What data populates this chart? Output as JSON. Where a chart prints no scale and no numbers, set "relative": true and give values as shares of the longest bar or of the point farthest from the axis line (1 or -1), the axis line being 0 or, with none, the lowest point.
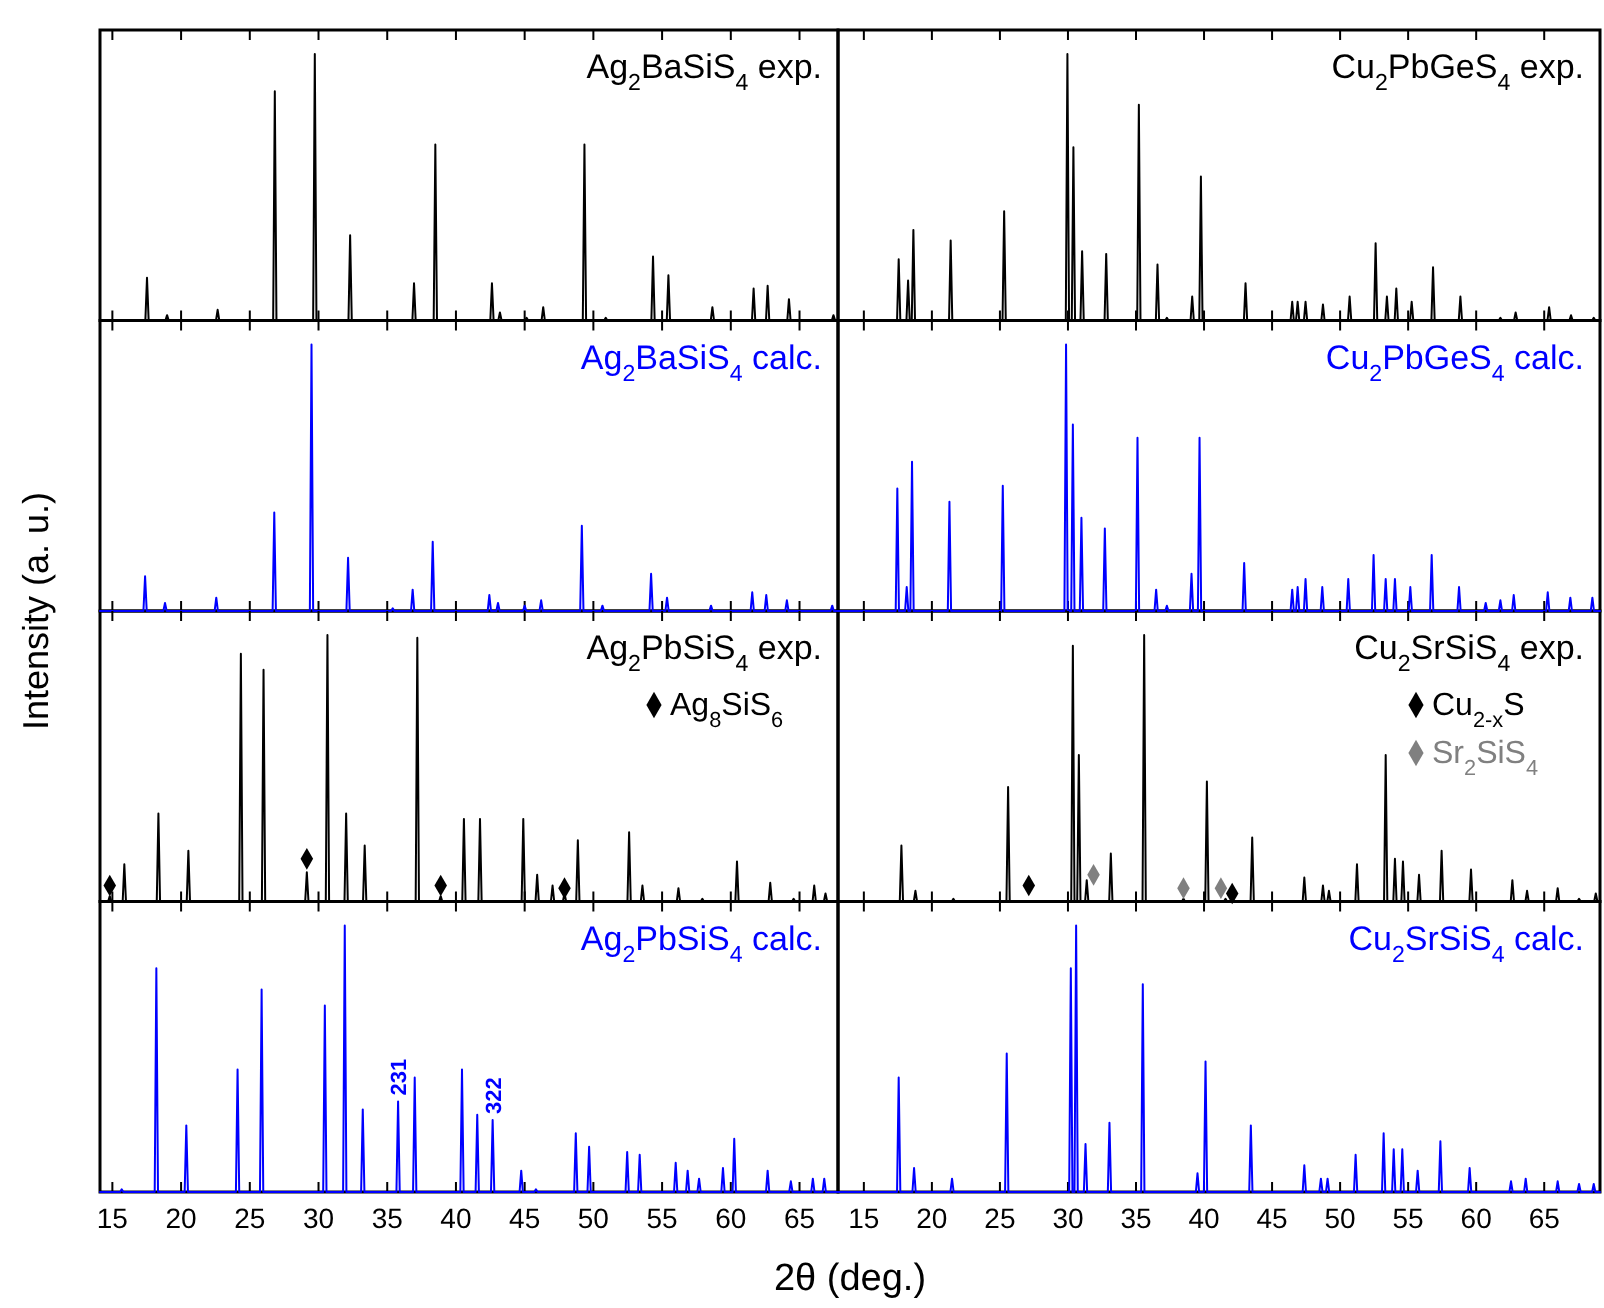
{
  "chart_data": [
    {
      "type": "line",
      "title": "Ag$_{2}$BaSiS$_{4}$ exp.",
      "relative": true,
      "xlim": [
        14.1,
        67.8
      ],
      "xticks": [
        15,
        20,
        25,
        30,
        35,
        40,
        45,
        50,
        55,
        60,
        65
      ],
      "tick_labels": false,
      "series": [
        {
          "color": "#000000",
          "x": [
            14.1,
            17.4,
            17.52,
            17.64,
            18.86,
            18.98,
            19.1,
            22.54,
            22.66,
            22.78,
            26.7,
            26.82,
            26.94,
            29.61,
            29.73,
            29.85,
            32.18,
            32.3,
            32.42,
            36.83,
            36.95,
            37.07,
            38.38,
            38.5,
            38.62,
            42.5,
            42.62,
            42.74,
            43.08,
            43.2,
            43.32,
            45.02,
            45.14,
            45.26,
            46.23,
            46.35,
            46.47,
            49.23,
            49.35,
            49.47,
            50.78,
            50.9,
            51.02,
            54.22,
            54.34,
            54.46,
            55.34,
            55.46,
            55.58,
            58.54,
            58.66,
            58.78,
            61.54,
            61.66,
            61.78,
            62.56,
            62.68,
            62.8,
            64.11,
            64.23,
            64.35,
            67.35,
            67.47,
            67.59,
            67.8
          ],
          "values": [
            0,
            0,
            0.16,
            0,
            0,
            0.02,
            0,
            0,
            0.04,
            0,
            0,
            0.86,
            0,
            0,
            1,
            0,
            0,
            0.32,
            0,
            0,
            0.14,
            0,
            0,
            0.66,
            0,
            0,
            0.14,
            0,
            0,
            0.03,
            0,
            0,
            0.01,
            0,
            0,
            0.05,
            0,
            0,
            0.66,
            0,
            0,
            0.01,
            0,
            0,
            0.24,
            0,
            0,
            0.17,
            0,
            0,
            0.05,
            0,
            0,
            0.12,
            0,
            0,
            0.13,
            0,
            0,
            0.08,
            0,
            0,
            0.02,
            0,
            0
          ]
        }
      ]
    },
    {
      "type": "line",
      "title": "Cu$_{2}$PbGeS$_{4}$ exp.",
      "relative": true,
      "xlim": [
        13.1,
        69.1
      ],
      "xticks": [
        15,
        20,
        25,
        30,
        35,
        40,
        45,
        50,
        55,
        60,
        65
      ],
      "tick_labels": false,
      "series": [
        {
          "color": "#000000",
          "x": [
            13.1,
            17.44,
            17.56,
            17.68,
            18.13,
            18.25,
            18.37,
            18.52,
            18.64,
            18.76,
            21.26,
            21.38,
            21.5,
            25.19,
            25.31,
            25.43,
            29.84,
            29.96,
            30.08,
            30.28,
            30.4,
            30.52,
            30.92,
            31.04,
            31.16,
            32.69,
            32.81,
            32.93,
            35.09,
            35.21,
            35.33,
            36.46,
            36.58,
            36.7,
            37.15,
            37.27,
            37.39,
            39.01,
            39.13,
            39.25,
            39.65,
            39.77,
            39.89,
            42.93,
            43.05,
            43.17,
            46.36,
            46.48,
            46.6,
            46.76,
            46.88,
            47,
            47.34,
            47.46,
            47.58,
            48.62,
            48.74,
            48.86,
            50.58,
            50.7,
            50.82,
            52.49,
            52.61,
            52.73,
            53.32,
            53.44,
            53.56,
            54.01,
            54.13,
            54.25,
            55.14,
            55.26,
            55.38,
            56.71,
            56.83,
            56.95,
            58.72,
            58.84,
            58.96,
            61.66,
            61.78,
            61.9,
            62.78,
            62.9,
            63.02,
            65.24,
            65.36,
            65.48,
            66.85,
            66.97,
            67.09,
            68.52,
            68.64,
            68.76,
            69.1
          ],
          "values": [
            0,
            0,
            0.23,
            0,
            0,
            0.15,
            0,
            0,
            0.34,
            0,
            0,
            0.3,
            0,
            0,
            0.41,
            0,
            0,
            1,
            0,
            0,
            0.65,
            0,
            0,
            0.26,
            0,
            0,
            0.25,
            0,
            0,
            0.81,
            0,
            0,
            0.21,
            0,
            0,
            0.01,
            0,
            0,
            0.09,
            0,
            0,
            0.54,
            0,
            0,
            0.14,
            0,
            0,
            0.07,
            0,
            0,
            0.07,
            0,
            0,
            0.07,
            0,
            0,
            0.06,
            0,
            0,
            0.09,
            0,
            0,
            0.29,
            0,
            0,
            0.09,
            0,
            0,
            0.12,
            0,
            0,
            0.07,
            0,
            0,
            0.2,
            0,
            0,
            0.09,
            0,
            0,
            0.01,
            0,
            0,
            0.03,
            0,
            0,
            0.05,
            0,
            0,
            0.02,
            0,
            0,
            0.01,
            0,
            0
          ]
        }
      ]
    },
    {
      "type": "line",
      "title": "Ag$_{2}$BaSiS$_{4}$ calc.",
      "relative": true,
      "xlim": [
        14.1,
        67.8
      ],
      "xticks": [
        15,
        20,
        25,
        30,
        35,
        40,
        45,
        50,
        55,
        60,
        65
      ],
      "tick_labels": false,
      "series": [
        {
          "color": "#0000ff",
          "x": [
            14.1,
            17.26,
            17.38,
            17.5,
            18.71,
            18.83,
            18.95,
            22.44,
            22.56,
            22.68,
            26.66,
            26.78,
            26.9,
            29.37,
            29.49,
            29.61,
            32.03,
            32.15,
            32.27,
            35.28,
            35.4,
            35.52,
            36.73,
            36.85,
            36.97,
            38.19,
            38.31,
            38.43,
            42.31,
            42.43,
            42.55,
            42.94,
            43.06,
            43.18,
            44.88,
            45,
            45.12,
            46.08,
            46.2,
            46.32,
            49.04,
            49.16,
            49.28,
            50.54,
            50.66,
            50.78,
            54.08,
            54.2,
            54.32,
            55.24,
            55.36,
            55.48,
            58.44,
            58.56,
            58.68,
            61.44,
            61.56,
            61.68,
            62.46,
            62.58,
            62.7,
            63.96,
            64.08,
            64.2,
            67.26,
            67.38,
            67.5,
            67.8
          ],
          "values": [
            0,
            0,
            0.13,
            0,
            0,
            0.03,
            0,
            0,
            0.05,
            0,
            0,
            0.37,
            0,
            0,
            1,
            0,
            0,
            0.2,
            0,
            0,
            0.01,
            0,
            0,
            0.08,
            0,
            0,
            0.26,
            0,
            0,
            0.06,
            0,
            0,
            0.03,
            0,
            0,
            0.02,
            0,
            0,
            0.04,
            0,
            0,
            0.32,
            0,
            0,
            0.02,
            0,
            0,
            0.14,
            0,
            0,
            0.05,
            0,
            0,
            0.02,
            0,
            0,
            0.07,
            0,
            0,
            0.06,
            0,
            0,
            0.04,
            0,
            0,
            0.02,
            0,
            0
          ]
        }
      ]
    },
    {
      "type": "line",
      "title": "Cu$_{2}$PbGeS$_{4}$ calc.",
      "relative": true,
      "xlim": [
        13.1,
        69.1
      ],
      "xticks": [
        15,
        20,
        25,
        30,
        35,
        40,
        45,
        50,
        55,
        60,
        65
      ],
      "tick_labels": false,
      "series": [
        {
          "color": "#0000ff",
          "x": [
            13.1,
            17.34,
            17.46,
            17.58,
            18.03,
            18.15,
            18.27,
            18.42,
            18.54,
            18.66,
            21.17,
            21.29,
            21.41,
            25.09,
            25.21,
            25.33,
            29.74,
            29.86,
            29.98,
            30.24,
            30.36,
            30.48,
            30.87,
            30.99,
            31.11,
            32.59,
            32.71,
            32.83,
            34.99,
            35.11,
            35.23,
            36.36,
            36.48,
            36.6,
            37.15,
            37.27,
            37.39,
            38.96,
            39.08,
            39.2,
            39.55,
            39.67,
            39.79,
            42.83,
            42.95,
            43.07,
            46.36,
            46.48,
            46.6,
            46.76,
            46.88,
            47,
            47.34,
            47.46,
            47.58,
            48.57,
            48.69,
            48.81,
            50.48,
            50.6,
            50.72,
            52.34,
            52.46,
            52.58,
            53.23,
            53.35,
            53.47,
            53.91,
            54.03,
            54.15,
            55.04,
            55.16,
            55.28,
            56.61,
            56.73,
            56.85,
            58.62,
            58.74,
            58.86,
            60.58,
            60.7,
            60.82,
            61.66,
            61.78,
            61.9,
            62.64,
            62.76,
            62.88,
            65.14,
            65.26,
            65.38,
            66.8,
            66.92,
            67.04,
            68.42,
            68.54,
            68.66,
            69.1
          ],
          "values": [
            0,
            0,
            0.46,
            0,
            0,
            0.09,
            0,
            0,
            0.56,
            0,
            0,
            0.41,
            0,
            0,
            0.47,
            0,
            0,
            1,
            0,
            0,
            0.7,
            0,
            0,
            0.35,
            0,
            0,
            0.31,
            0,
            0,
            0.65,
            0,
            0,
            0.08,
            0,
            0,
            0.02,
            0,
            0,
            0.14,
            0,
            0,
            0.65,
            0,
            0,
            0.18,
            0,
            0,
            0.08,
            0,
            0,
            0.09,
            0,
            0,
            0.12,
            0,
            0,
            0.09,
            0,
            0,
            0.12,
            0,
            0,
            0.21,
            0,
            0,
            0.12,
            0,
            0,
            0.12,
            0,
            0,
            0.09,
            0,
            0,
            0.21,
            0,
            0,
            0.09,
            0,
            0,
            0.03,
            0,
            0,
            0.04,
            0,
            0,
            0.06,
            0,
            0,
            0.07,
            0,
            0,
            0.05,
            0,
            0,
            0.05,
            0,
            0
          ]
        }
      ]
    },
    {
      "type": "line",
      "title": "Ag$_{2}$PbSiS$_{4}$ exp.",
      "ylabel": "Intensity (a. u.)",
      "relative": true,
      "legend": "top right",
      "xlim": [
        14.1,
        67.8
      ],
      "xticks": [
        15,
        20,
        25,
        30,
        35,
        40,
        45,
        50,
        55,
        60,
        65
      ],
      "tick_labels": false,
      "series": [
        {
          "color": "#000000",
          "x": [
            14.1,
            14.69,
            14.81,
            14.93,
            15.75,
            15.87,
            15.99,
            18.23,
            18.35,
            18.47,
            20.41,
            20.53,
            20.65,
            24.23,
            24.35,
            24.47,
            25.88,
            26,
            26.12,
            29.03,
            29.15,
            29.27,
            30.53,
            30.65,
            30.77,
            31.89,
            32.01,
            32.13,
            33.24,
            33.36,
            33.48,
            37.07,
            37.19,
            37.31,
            38.77,
            38.89,
            39.01,
            40.46,
            40.58,
            40.7,
            41.63,
            41.75,
            41.87,
            44.78,
            44.9,
            45.02,
            45.79,
            45.91,
            46.03,
            46.91,
            47.03,
            47.15,
            47.78,
            47.9,
            48.02,
            48.75,
            48.87,
            48.99,
            52.48,
            52.6,
            52.72,
            53.45,
            53.57,
            53.69,
            56.07,
            56.19,
            56.31,
            57.81,
            57.93,
            58.05,
            60.33,
            60.45,
            60.57,
            62.75,
            62.87,
            62.99,
            64.45,
            64.57,
            64.69,
            65.95,
            66.07,
            66.19,
            66.77,
            66.89,
            67.01,
            67.8
          ],
          "values": [
            0,
            0,
            0.02,
            0,
            0,
            0.14,
            0,
            0,
            0.33,
            0,
            0,
            0.19,
            0,
            0,
            0.93,
            0,
            0,
            0.87,
            0,
            0,
            0.11,
            0,
            0,
            1,
            0,
            0,
            0.33,
            0,
            0,
            0.21,
            0,
            0,
            0.99,
            0,
            0,
            0.02,
            0,
            0,
            0.31,
            0,
            0,
            0.31,
            0,
            0,
            0.31,
            0,
            0,
            0.1,
            0,
            0,
            0.06,
            0,
            0,
            0.03,
            0,
            0,
            0.23,
            0,
            0,
            0.26,
            0,
            0,
            0.06,
            0,
            0,
            0.05,
            0,
            0,
            0.01,
            0,
            0,
            0.15,
            0,
            0,
            0.07,
            0,
            0,
            0.01,
            0,
            0,
            0.06,
            0,
            0,
            0.03,
            0,
            0
          ]
        },
        {
          "type": "scatter",
          "name": "Ag$_{8}$SiS$_{6}$",
          "color": "#000000",
          "marker": "diamond",
          "x": [
            14.81,
            29.15,
            38.89,
            47.9
          ],
          "values": [
            0.06,
            0.16,
            0.06,
            0.05
          ]
        }
      ]
    },
    {
      "type": "line",
      "title": "Cu$_{2}$SrSiS$_{4}$ exp.",
      "relative": true,
      "legend": "top right",
      "xlim": [
        13.1,
        69.1
      ],
      "xticks": [
        15,
        20,
        25,
        30,
        35,
        40,
        45,
        50,
        55,
        60,
        65
      ],
      "tick_labels": false,
      "series": [
        {
          "color": "#000000",
          "x": [
            13.1,
            17.64,
            17.76,
            17.88,
            18.67,
            18.79,
            18.91,
            21.46,
            21.58,
            21.7,
            25.48,
            25.6,
            25.72,
            30.24,
            30.36,
            30.48,
            30.68,
            30.8,
            30.92,
            31.26,
            31.38,
            31.5,
            33.03,
            33.15,
            33.27,
            35.48,
            35.6,
            35.72,
            38.37,
            38.49,
            38.61,
            40.09,
            40.21,
            40.33,
            41.46,
            41.58,
            41.7,
            43.42,
            43.54,
            43.66,
            47.25,
            47.37,
            47.49,
            48.62,
            48.74,
            48.86,
            49.06,
            49.18,
            49.3,
            51.12,
            51.24,
            51.36,
            53.23,
            53.35,
            53.47,
            53.91,
            54.03,
            54.15,
            54.5,
            54.62,
            54.74,
            55.68,
            55.8,
            55.92,
            57.34,
            57.46,
            57.58,
            59.5,
            59.62,
            59.74,
            62.54,
            62.66,
            62.78,
            63.62,
            63.74,
            63.86,
            65.87,
            65.99,
            66.11,
            67.44,
            67.56,
            67.68,
            68.67,
            68.79,
            68.91,
            69.1
          ],
          "values": [
            0,
            0,
            0.21,
            0,
            0,
            0.04,
            0,
            0,
            0.01,
            0,
            0,
            0.43,
            0,
            0,
            0.96,
            0,
            0,
            0.55,
            0,
            0,
            0.08,
            0,
            0,
            0.18,
            0,
            0,
            1,
            0,
            0,
            0.01,
            0,
            0,
            0.45,
            0,
            0,
            0.01,
            0,
            0,
            0.24,
            0,
            0,
            0.09,
            0,
            0,
            0.06,
            0,
            0,
            0.04,
            0,
            0,
            0.14,
            0,
            0,
            0.55,
            0,
            0,
            0.16,
            0,
            0,
            0.15,
            0,
            0,
            0.1,
            0,
            0,
            0.19,
            0,
            0,
            0.12,
            0,
            0,
            0.08,
            0,
            0,
            0.04,
            0,
            0,
            0.05,
            0,
            0,
            0.01,
            0,
            0,
            0.03,
            0,
            0
          ]
        },
        {
          "type": "scatter",
          "name": "Cu$_{2-x}$S",
          "color": "#000000",
          "marker": "diamond",
          "x": [
            27.12,
            42.07
          ],
          "values": [
            0.06,
            0.03
          ]
        },
        {
          "type": "scatter",
          "name": "Sr$_{2}$SiS$_{4}$",
          "color": "#808080",
          "marker": "diamond",
          "x": [
            31.88,
            38.49,
            41.24
          ],
          "values": [
            0.1,
            0.05,
            0.05
          ]
        }
      ]
    },
    {
      "type": "line",
      "title": "Ag$_{2}$PbSiS$_{4}$ calc.",
      "xlabel": "2θ (deg.)",
      "relative": true,
      "xlim": [
        14.1,
        67.8
      ],
      "xticks": [
        15,
        20,
        25,
        30,
        35,
        40,
        45,
        50,
        55,
        60,
        65
      ],
      "tick_labels": "x",
      "annotations": [
        {
          "text": "231",
          "x": 35.79,
          "y": 0.34
        },
        {
          "text": "322",
          "x": 42.67,
          "y": 0.27
        }
      ],
      "series": [
        {
          "color": "#0000ff",
          "x": [
            14.1,
            15.56,
            15.68,
            15.8,
            18.08,
            18.2,
            18.32,
            20.26,
            20.38,
            20.5,
            23.99,
            24.11,
            24.23,
            25.74,
            25.86,
            25.98,
            30.34,
            30.46,
            30.58,
            31.79,
            31.91,
            32.03,
            33.1,
            33.22,
            33.34,
            35.67,
            35.79,
            35.91,
            36.88,
            37,
            37.12,
            40.32,
            40.44,
            40.56,
            41.43,
            41.55,
            41.67,
            42.55,
            42.67,
            42.79,
            44.63,
            44.75,
            44.87,
            45.7,
            45.82,
            45.94,
            48.6,
            48.72,
            48.84,
            49.57,
            49.69,
            49.81,
            52.34,
            52.46,
            52.58,
            53.25,
            53.37,
            53.49,
            55.87,
            55.99,
            56.11,
            56.74,
            56.86,
            56.98,
            57.57,
            57.69,
            57.81,
            59.31,
            59.43,
            59.55,
            60.13,
            60.25,
            60.37,
            62.56,
            62.68,
            62.8,
            64.25,
            64.37,
            64.49,
            65.85,
            65.97,
            66.09,
            66.68,
            66.8,
            66.92,
            67.8
          ],
          "values": [
            0,
            0,
            0.01,
            0,
            0,
            0.84,
            0,
            0,
            0.25,
            0,
            0,
            0.46,
            0,
            0,
            0.76,
            0,
            0,
            0.7,
            0,
            0,
            1,
            0,
            0,
            0.31,
            0,
            0,
            0.34,
            0,
            0,
            0.43,
            0,
            0,
            0.46,
            0,
            0,
            0.29,
            0,
            0,
            0.27,
            0,
            0,
            0.08,
            0,
            0,
            0.01,
            0,
            0,
            0.22,
            0,
            0,
            0.17,
            0,
            0,
            0.15,
            0,
            0,
            0.14,
            0,
            0,
            0.11,
            0,
            0,
            0.08,
            0,
            0,
            0.05,
            0,
            0,
            0.09,
            0,
            0,
            0.2,
            0,
            0,
            0.08,
            0,
            0,
            0.04,
            0,
            0,
            0.05,
            0,
            0,
            0.05,
            0,
            0
          ]
        }
      ]
    },
    {
      "type": "line",
      "title": "Cu$_{2}$SrSiS$_{4}$ calc.",
      "relative": true,
      "xlim": [
        13.1,
        69.1
      ],
      "xticks": [
        15,
        20,
        25,
        30,
        35,
        40,
        45,
        50,
        55,
        60,
        65
      ],
      "tick_labels": "x",
      "series": [
        {
          "color": "#0000ff",
          "x": [
            13.1,
            17.44,
            17.56,
            17.68,
            18.57,
            18.69,
            18.81,
            21.36,
            21.48,
            21.6,
            25.38,
            25.5,
            25.62,
            30.09,
            30.21,
            30.33,
            30.48,
            30.6,
            30.72,
            31.17,
            31.29,
            31.41,
            32.93,
            33.05,
            33.17,
            35.38,
            35.5,
            35.62,
            39.4,
            39.52,
            39.64,
            39.99,
            40.11,
            40.23,
            43.32,
            43.44,
            43.56,
            47.25,
            47.37,
            47.49,
            48.47,
            48.59,
            48.71,
            48.96,
            49.08,
            49.2,
            51.02,
            51.14,
            51.26,
            53.08,
            53.2,
            53.32,
            53.82,
            53.94,
            54.06,
            54.45,
            54.57,
            54.69,
            55.58,
            55.7,
            55.82,
            57.25,
            57.37,
            57.49,
            59.4,
            59.52,
            59.64,
            62.44,
            62.56,
            62.68,
            63.52,
            63.64,
            63.76,
            65.87,
            65.99,
            66.11,
            67.44,
            67.56,
            67.68,
            68.52,
            68.64,
            68.76,
            69.1
          ],
          "values": [
            0,
            0,
            0.43,
            0,
            0,
            0.09,
            0,
            0,
            0.05,
            0,
            0,
            0.52,
            0,
            0,
            0.84,
            0,
            0,
            1,
            0,
            0,
            0.18,
            0,
            0,
            0.26,
            0,
            0,
            0.78,
            0,
            0,
            0.07,
            0,
            0,
            0.49,
            0,
            0,
            0.25,
            0,
            0,
            0.1,
            0,
            0,
            0.05,
            0,
            0,
            0.05,
            0,
            0,
            0.14,
            0,
            0,
            0.22,
            0,
            0,
            0.16,
            0,
            0,
            0.16,
            0,
            0,
            0.08,
            0,
            0,
            0.19,
            0,
            0,
            0.09,
            0,
            0,
            0.04,
            0,
            0,
            0.05,
            0,
            0,
            0.04,
            0,
            0,
            0.03,
            0,
            0,
            0.03,
            0,
            0
          ]
        }
      ]
    }
  ]
}
